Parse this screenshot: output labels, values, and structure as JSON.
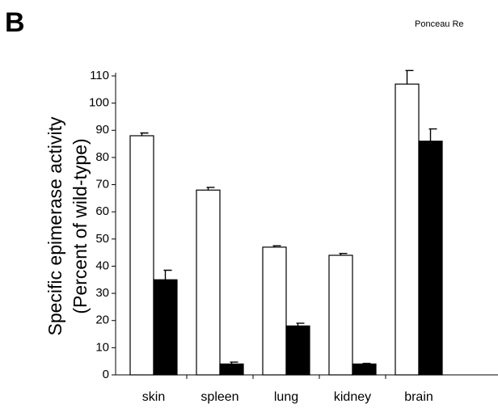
{
  "chart_data": {
    "type": "bar",
    "panel_label": "B",
    "side_text": "Ponceau Re",
    "y_label": [
      "Specific epimerase activity",
      "(Percent of wild-type)"
    ],
    "categories": [
      "skin",
      "spleen",
      "lung",
      "kidney",
      "brain"
    ],
    "series": [
      {
        "color": "#ffffff",
        "values": [
          88,
          68,
          47,
          44,
          107
        ],
        "errors": [
          1,
          1,
          0.5,
          0.7,
          5
        ]
      },
      {
        "color": "#000000",
        "values": [
          35,
          4,
          18,
          4,
          86
        ],
        "errors": [
          3.5,
          0.7,
          1,
          0.2,
          4.5
        ]
      }
    ],
    "ylim": [
      0,
      110
    ],
    "yticks": [
      0,
      10,
      20,
      30,
      40,
      50,
      60,
      70,
      80,
      90,
      100,
      110
    ],
    "grid": false
  }
}
